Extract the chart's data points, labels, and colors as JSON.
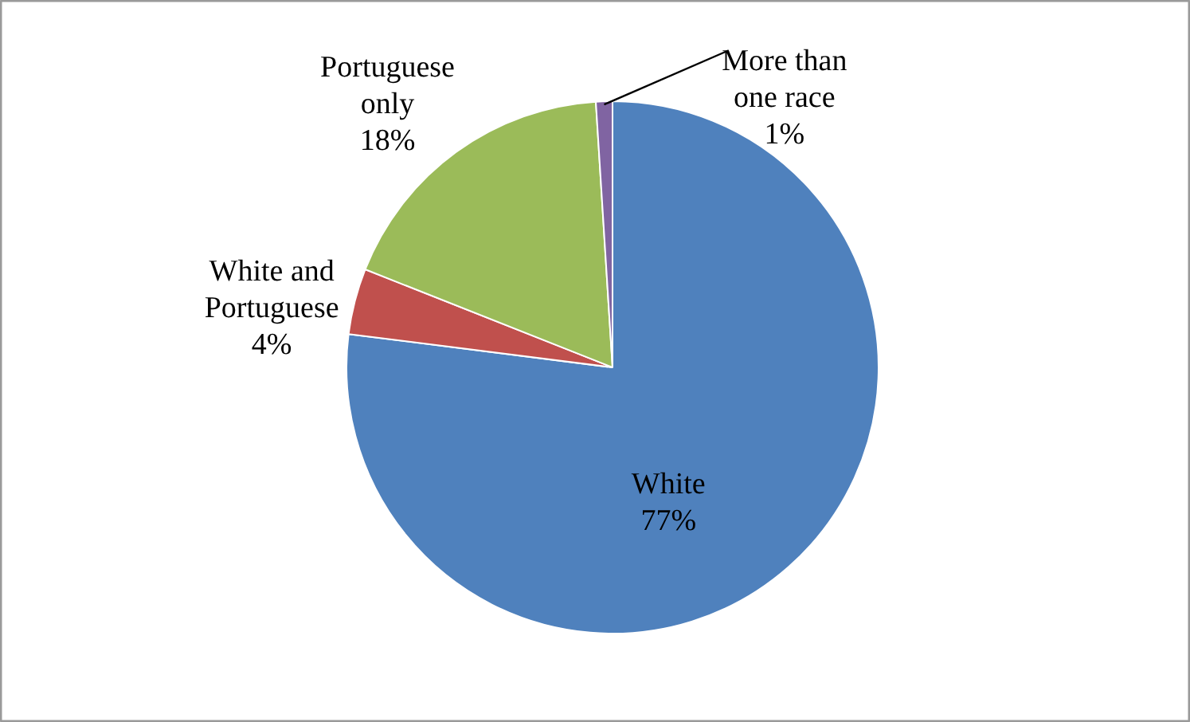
{
  "chart_data": {
    "type": "pie",
    "categories": [
      "White",
      "White and Portuguese",
      "Portuguese only",
      "More than one race"
    ],
    "values": [
      77,
      4,
      18,
      1
    ],
    "colors": [
      "#4f81bd",
      "#c0504d",
      "#9bbb59",
      "#8064a2"
    ],
    "value_labels": [
      "77%",
      "4%",
      "18%",
      "1%"
    ]
  }
}
